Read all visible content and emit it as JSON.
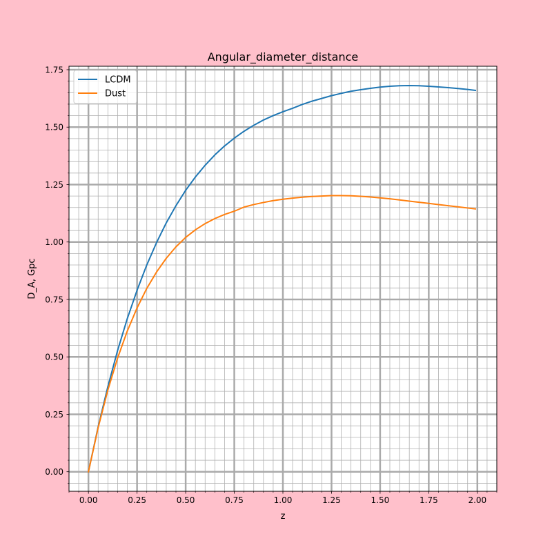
{
  "figure": {
    "background_color": "#ffc0cb",
    "axes_background_color": "#ffffff"
  },
  "chart_data": {
    "type": "line",
    "title": "Angular_diameter_distance",
    "xlabel": "z",
    "ylabel": "D_A, Gpc",
    "xlim": [
      -0.1,
      2.1
    ],
    "ylim": [
      -0.085,
      1.765
    ],
    "x_ticks": [
      "0.00",
      "0.25",
      "0.50",
      "0.75",
      "1.00",
      "1.25",
      "1.50",
      "1.75",
      "2.00"
    ],
    "y_ticks": [
      "0.00",
      "0.25",
      "0.50",
      "0.75",
      "1.00",
      "1.25",
      "1.50",
      "1.75"
    ],
    "grid": true,
    "minor_grid": true,
    "legend_position": "top-left",
    "x": [
      0.0,
      0.05,
      0.1,
      0.15,
      0.2,
      0.25,
      0.3,
      0.35,
      0.4,
      0.45,
      0.5,
      0.55,
      0.6,
      0.65,
      0.7,
      0.75,
      0.8,
      0.85,
      0.9,
      0.95,
      1.0,
      1.05,
      1.1,
      1.15,
      1.2,
      1.25,
      1.3,
      1.35,
      1.4,
      1.45,
      1.5,
      1.55,
      1.6,
      1.65,
      1.7,
      1.75,
      1.8,
      1.85,
      1.9,
      1.95,
      1.99
    ],
    "series": [
      {
        "name": "LCDM",
        "color": "#1f77b4",
        "values": [
          0.0,
          0.196,
          0.371,
          0.528,
          0.667,
          0.79,
          0.9,
          0.997,
          1.083,
          1.158,
          1.225,
          1.283,
          1.334,
          1.379,
          1.418,
          1.452,
          1.482,
          1.508,
          1.531,
          1.55,
          1.567,
          1.582,
          1.599,
          1.613,
          1.625,
          1.637,
          1.647,
          1.656,
          1.663,
          1.669,
          1.674,
          1.678,
          1.68,
          1.681,
          1.68,
          1.678,
          1.675,
          1.672,
          1.668,
          1.664,
          1.66
        ]
      },
      {
        "name": "Dust",
        "color": "#ff7f0e",
        "values": [
          0.0,
          0.192,
          0.356,
          0.495,
          0.613,
          0.713,
          0.798,
          0.869,
          0.929,
          0.979,
          1.02,
          1.053,
          1.08,
          1.102,
          1.12,
          1.134,
          1.152,
          1.163,
          1.172,
          1.18,
          1.186,
          1.191,
          1.195,
          1.198,
          1.2,
          1.202,
          1.202,
          1.201,
          1.199,
          1.196,
          1.192,
          1.188,
          1.183,
          1.178,
          1.173,
          1.168,
          1.163,
          1.158,
          1.153,
          1.148,
          1.144
        ]
      }
    ]
  }
}
